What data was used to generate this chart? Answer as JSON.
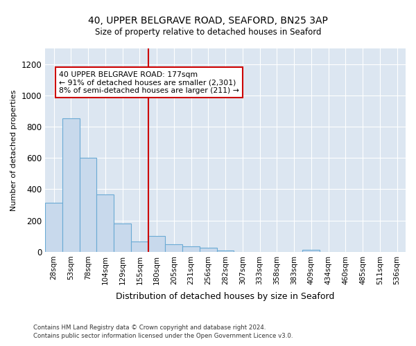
{
  "title1": "40, UPPER BELGRAVE ROAD, SEAFORD, BN25 3AP",
  "title2": "Size of property relative to detached houses in Seaford",
  "xlabel": "Distribution of detached houses by size in Seaford",
  "ylabel": "Number of detached properties",
  "categories": [
    "28sqm",
    "53sqm",
    "78sqm",
    "104sqm",
    "129sqm",
    "155sqm",
    "180sqm",
    "205sqm",
    "231sqm",
    "256sqm",
    "282sqm",
    "307sqm",
    "333sqm",
    "358sqm",
    "383sqm",
    "409sqm",
    "434sqm",
    "460sqm",
    "485sqm",
    "511sqm",
    "536sqm"
  ],
  "values": [
    315,
    855,
    600,
    365,
    180,
    65,
    100,
    50,
    35,
    25,
    10,
    0,
    0,
    0,
    0,
    12,
    0,
    0,
    0,
    0,
    0
  ],
  "bar_color": "#c8d9ec",
  "bar_edge_color": "#6aaad4",
  "vline_color": "#cc0000",
  "annotation_text": "40 UPPER BELGRAVE ROAD: 177sqm\n← 91% of detached houses are smaller (2,301)\n8% of semi-detached houses are larger (211) →",
  "annotation_box_color": "#ffffff",
  "annotation_box_edge": "#cc0000",
  "ylim": [
    0,
    1300
  ],
  "yticks": [
    0,
    200,
    400,
    600,
    800,
    1000,
    1200
  ],
  "fig_bg": "#ffffff",
  "plot_bg": "#dce6f1",
  "grid_color": "#ffffff",
  "footnote1": "Contains HM Land Registry data © Crown copyright and database right 2024.",
  "footnote2": "Contains public sector information licensed under the Open Government Licence v3.0."
}
